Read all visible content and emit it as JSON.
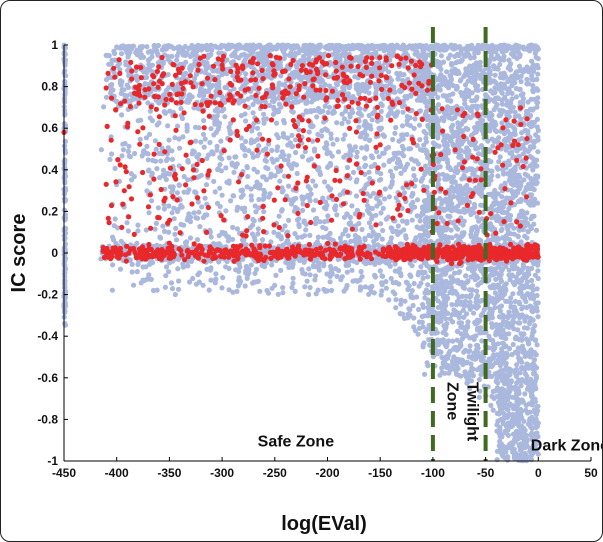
{
  "chart_data": {
    "type": "scatter",
    "xlabel": "log(EVal)",
    "ylabel": "IC score",
    "xlim": [
      -450,
      50
    ],
    "ylim": [
      -1,
      1
    ],
    "x_ticks": [
      "-450",
      "-400",
      "-350",
      "-300",
      "-250",
      "-200",
      "-150",
      "-100",
      "-50",
      "0",
      "50"
    ],
    "y_ticks": [
      "1",
      "0.8",
      "0.6",
      "0.4",
      "0.2",
      "0",
      "-0.2",
      "-0.4",
      "-0.6",
      "-0.8",
      "-1"
    ],
    "grid": false,
    "series": [
      {
        "color": "#aab8de",
        "points_description": "dense cloud spanning x from about -415 to 0; y roughly -0.2 to 1 at low log(EVal), widening to the full range -1 to 1 near x = -100 to 0; a continuous band at y = 1 from about -400 to 0"
      },
      {
        "color": "#e8282a",
        "points_description": "sparser points concentrated along y ≈ 0 from -415 to 0, with a second cluster near y ≈ 0.8 to 0.95 between -400 and -100, scattered points between"
      }
    ],
    "reference_lines": [
      {
        "x": -100,
        "color": "#3f6a1f",
        "style": "dashed"
      },
      {
        "x": -50,
        "color": "#3f6a1f",
        "style": "dashed"
      }
    ],
    "annotations": [
      {
        "text": "Safe Zone",
        "x": -230,
        "y": -0.93
      },
      {
        "text": "Twilight Zone",
        "x": -75,
        "y": -0.8,
        "rotation": 90
      },
      {
        "text": "Dark Zone",
        "x": 30,
        "y": -0.95
      }
    ]
  }
}
